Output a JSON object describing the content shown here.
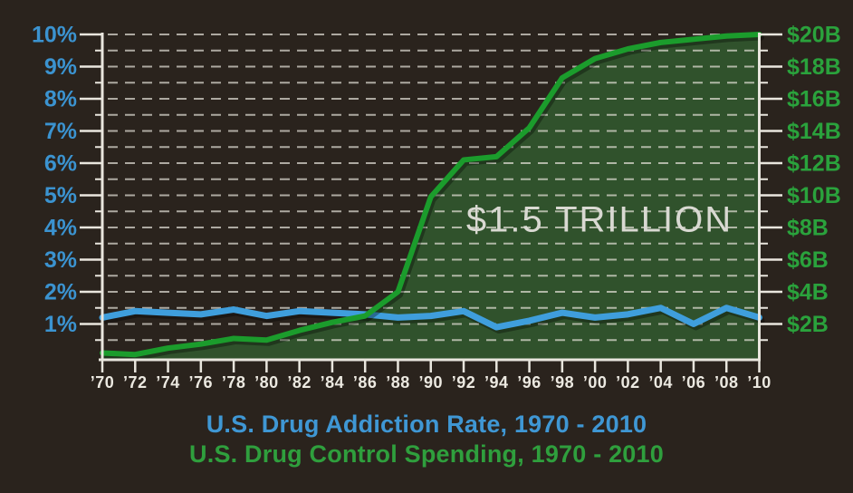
{
  "colors": {
    "background": "#2a231d",
    "axis": "#e9e6de",
    "gridline": "rgba(225,222,212,0.72)",
    "x_label": "#ece9e1",
    "shadow": "rgba(0,0,0,0.33)"
  },
  "chart_data": {
    "type": "line",
    "categories": [
      "’70",
      "’72",
      "’74",
      "’76",
      "’78",
      "’80",
      "’82",
      "’84",
      "’86",
      "’88",
      "’90",
      "’92",
      "’94",
      "’96",
      "’98",
      "’00",
      "’02",
      "’04",
      "’06",
      "’08",
      "’10"
    ],
    "series": [
      {
        "name": "U.S. Drug Addiction Rate",
        "axis": "left",
        "unit": "%",
        "color": "#3f9edc",
        "values": [
          1.2,
          1.4,
          1.35,
          1.3,
          1.45,
          1.25,
          1.4,
          1.35,
          1.3,
          1.2,
          1.25,
          1.4,
          0.9,
          1.1,
          1.35,
          1.2,
          1.3,
          1.5,
          1.0,
          1.5,
          1.2
        ]
      },
      {
        "name": "U.S. Drug Control Spending",
        "axis": "right",
        "unit": "$B",
        "color": "#1b9c2c",
        "area_fill": "#30522c",
        "values": [
          0.2,
          0.1,
          0.5,
          0.75,
          1.1,
          1.0,
          1.6,
          2.1,
          2.5,
          4.0,
          9.9,
          12.2,
          12.4,
          14.2,
          17.3,
          18.5,
          19.1,
          19.5,
          19.7,
          19.9,
          20.0
        ]
      }
    ],
    "left_axis": {
      "min": 0,
      "max": 10,
      "tick_labels": [
        "10%",
        "9%",
        "8%",
        "7%",
        "6%",
        "5%",
        "4%",
        "3%",
        "2%",
        "1%"
      ],
      "minor_grid_step": 0.5,
      "color": "#3b93d0"
    },
    "right_axis": {
      "min": 0,
      "max": 20,
      "tick_labels": [
        "$20B",
        "$18B",
        "$16B",
        "$14B",
        "$12B",
        "$10B",
        "$8B",
        "$6B",
        "$4B",
        "$2B"
      ],
      "color": "#2aa23c"
    },
    "grid": "dashed",
    "annotation": {
      "text": "$1.5 TRILLION",
      "color": "#d9d9d2"
    },
    "legend_position": "bottom",
    "legend": [
      {
        "text": "U.S. Drug Addiction Rate, 1970 - 2010",
        "color": "#3f97d4"
      },
      {
        "text": "U.S. Drug Control Spending, 1970 - 2010",
        "color": "#2f9f3d"
      }
    ]
  }
}
